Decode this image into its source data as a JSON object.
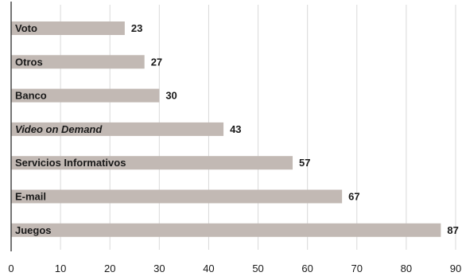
{
  "chart_data": {
    "type": "bar",
    "orientation": "horizontal",
    "categories": [
      "Voto",
      "Otros",
      "Banco",
      "Video on Demand",
      "Servicios Informativos",
      "E-mail",
      "Juegos"
    ],
    "italic_categories": [
      "Video on Demand"
    ],
    "values": [
      23,
      27,
      30,
      43,
      57,
      67,
      87
    ],
    "xlim": [
      0,
      90
    ],
    "xticks": [
      0,
      10,
      20,
      30,
      40,
      50,
      60,
      70,
      80,
      90
    ],
    "grid": true,
    "bar_color": "#c2b9b4"
  }
}
